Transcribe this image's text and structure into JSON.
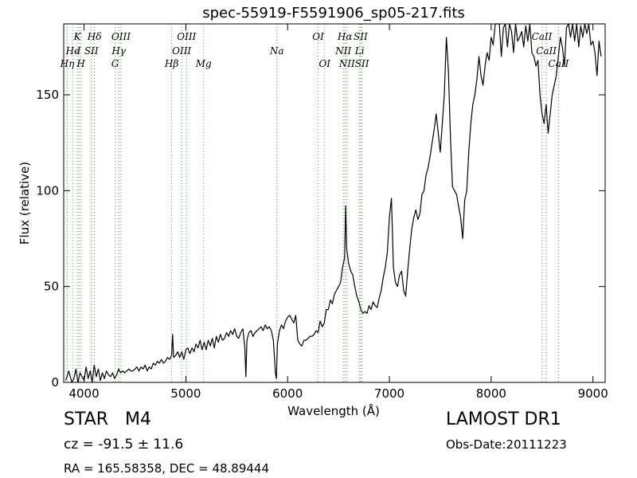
{
  "chart_data": {
    "type": "line",
    "title": "spec-55919-F5591906_sp05-217.fits",
    "xlabel": "Wavelength (Å)",
    "ylabel": "Flux (relative)",
    "xlim": [
      3800,
      9120
    ],
    "ylim": [
      0,
      187
    ],
    "xticks": [
      4000,
      5000,
      6000,
      7000,
      8000,
      9000
    ],
    "yticks": [
      0,
      50,
      100,
      150
    ],
    "grid": false,
    "line_color": "#000000",
    "marker_color": "#44aa44",
    "series": [
      {
        "x": [
          3820,
          3850,
          3880,
          3900,
          3920,
          3940,
          3960,
          3980,
          4000,
          4020,
          4040,
          4060,
          4080,
          4100,
          4120,
          4140,
          4160,
          4180,
          4200,
          4220,
          4240,
          4260,
          4280,
          4300,
          4320,
          4340,
          4360,
          4380,
          4400,
          4420,
          4440,
          4460,
          4480,
          4500,
          4520,
          4540,
          4560,
          4580,
          4600,
          4620,
          4640,
          4660,
          4680,
          4700,
          4720,
          4740,
          4760,
          4780,
          4800,
          4820,
          4840,
          4860,
          4870,
          4880,
          4900,
          4920,
          4940,
          4960,
          4980,
          5000,
          5020,
          5040,
          5060,
          5080,
          5100,
          5120,
          5140,
          5160,
          5180,
          5200,
          5220,
          5240,
          5260,
          5280,
          5300,
          5320,
          5340,
          5360,
          5380,
          5400,
          5420,
          5440,
          5460,
          5480,
          5500,
          5520,
          5540,
          5560,
          5580,
          5590,
          5600,
          5620,
          5640,
          5660,
          5680,
          5700,
          5720,
          5740,
          5760,
          5780,
          5800,
          5820,
          5840,
          5860,
          5880,
          5890,
          5900,
          5920,
          5940,
          5960,
          5980,
          6000,
          6020,
          6040,
          6060,
          6080,
          6100,
          6120,
          6140,
          6160,
          6180,
          6200,
          6220,
          6240,
          6260,
          6280,
          6300,
          6320,
          6340,
          6360,
          6380,
          6400,
          6420,
          6440,
          6460,
          6480,
          6500,
          6520,
          6540,
          6560,
          6570,
          6580,
          6600,
          6620,
          6640,
          6660,
          6680,
          6700,
          6720,
          6740,
          6760,
          6780,
          6800,
          6820,
          6840,
          6860,
          6880,
          6900,
          6920,
          6940,
          6960,
          6980,
          7000,
          7020,
          7040,
          7060,
          7080,
          7100,
          7120,
          7140,
          7160,
          7180,
          7200,
          7220,
          7240,
          7260,
          7280,
          7300,
          7320,
          7340,
          7360,
          7380,
          7400,
          7420,
          7440,
          7460,
          7480,
          7500,
          7520,
          7540,
          7560,
          7580,
          7600,
          7620,
          7640,
          7660,
          7680,
          7700,
          7720,
          7740,
          7760,
          7780,
          7800,
          7820,
          7840,
          7860,
          7880,
          7900,
          7920,
          7940,
          7960,
          7980,
          8000,
          8020,
          8040,
          8060,
          8080,
          8100,
          8120,
          8140,
          8160,
          8180,
          8200,
          8220,
          8240,
          8260,
          8280,
          8300,
          8320,
          8340,
          8360,
          8380,
          8400,
          8420,
          8440,
          8460,
          8480,
          8500,
          8520,
          8540,
          8560,
          8580,
          8600,
          8620,
          8640,
          8660,
          8680,
          8700,
          8720,
          8740,
          8760,
          8780,
          8800,
          8820,
          8840,
          8860,
          8880,
          8900,
          8920,
          8940,
          8960,
          8980,
          9000,
          9020,
          9040,
          9060,
          9080
        ],
        "y": [
          1,
          6,
          0,
          2,
          7,
          0,
          5,
          3,
          1,
          8,
          2,
          6,
          0,
          9,
          3,
          7,
          1,
          5,
          2,
          6,
          4,
          3,
          5,
          2,
          4,
          7,
          5,
          6,
          5,
          6,
          7,
          6,
          6,
          7,
          8,
          6,
          8,
          7,
          9,
          6,
          8,
          7,
          10,
          9,
          11,
          10,
          12,
          10,
          11,
          13,
          12,
          14,
          25,
          13,
          14,
          16,
          13,
          16,
          12,
          17,
          18,
          15,
          18,
          16,
          20,
          18,
          22,
          17,
          21,
          17,
          22,
          19,
          23,
          18,
          24,
          21,
          25,
          22,
          23,
          26,
          24,
          27,
          25,
          28,
          24,
          23,
          26,
          28,
          18,
          3,
          22,
          26,
          27,
          24,
          26,
          27,
          28,
          29,
          27,
          30,
          28,
          29,
          27,
          22,
          5,
          2,
          20,
          27,
          30,
          28,
          32,
          34,
          35,
          33,
          31,
          35,
          22,
          20,
          19,
          22,
          22,
          23,
          24,
          24,
          25,
          27,
          26,
          32,
          29,
          31,
          38,
          38,
          43,
          41,
          46,
          48,
          50,
          52,
          60,
          65,
          92,
          70,
          62,
          58,
          56,
          50,
          45,
          42,
          38,
          36,
          37,
          36,
          40,
          38,
          42,
          40,
          39,
          44,
          48,
          55,
          60,
          68,
          86,
          96,
          60,
          52,
          50,
          56,
          58,
          48,
          45,
          58,
          70,
          80,
          86,
          90,
          85,
          88,
          98,
          100,
          108,
          112,
          118,
          125,
          132,
          140,
          130,
          120,
          135,
          150,
          180,
          162,
          128,
          102,
          100,
          98,
          92,
          86,
          75,
          95,
          100,
          120,
          135,
          145,
          150,
          158,
          170,
          160,
          155,
          165,
          172,
          168,
          180,
          176,
          187,
          187,
          187,
          170,
          185,
          187,
          175,
          187,
          183,
          172,
          187,
          178,
          180,
          183,
          175,
          186,
          178,
          187,
          172,
          170,
          165,
          168,
          150,
          140,
          135,
          145,
          130,
          140,
          150,
          155,
          160,
          170,
          180,
          175,
          165,
          185,
          187,
          180,
          187,
          178,
          187,
          175,
          186,
          180,
          187,
          182,
          187,
          176,
          178,
          172,
          160,
          178,
          170
        ],
        "line_series_values_note": ""
      }
    ],
    "line_markers": [
      {
        "label": "Hη",
        "x": 3835,
        "row": 3
      },
      {
        "label": "He",
        "x": 3889,
        "row": 2
      },
      {
        "label": "K",
        "x": 3934,
        "row": 1
      },
      {
        "label": "I",
        "x": 3950,
        "row": 2
      },
      {
        "label": "H",
        "x": 3969,
        "row": 3
      },
      {
        "label": "SII",
        "x": 4072,
        "row": 2
      },
      {
        "label": "Hδ",
        "x": 4102,
        "row": 1
      },
      {
        "label": "G",
        "x": 4305,
        "row": 3
      },
      {
        "label": "Hγ",
        "x": 4341,
        "row": 2
      },
      {
        "label": "OIII",
        "x": 4363,
        "row": 1
      },
      {
        "label": "Hβ",
        "x": 4861,
        "row": 3
      },
      {
        "label": "OIII",
        "x": 4959,
        "row": 2
      },
      {
        "label": "OIII",
        "x": 5007,
        "row": 1
      },
      {
        "label": "Mg",
        "x": 5175,
        "row": 3
      },
      {
        "label": "Na",
        "x": 5894,
        "row": 2
      },
      {
        "label": "OI",
        "x": 6300,
        "row": 1
      },
      {
        "label": "OI",
        "x": 6364,
        "row": 3
      },
      {
        "label": "NII",
        "x": 6548,
        "row": 2
      },
      {
        "label": "Hα",
        "x": 6563,
        "row": 1
      },
      {
        "label": "NII",
        "x": 6583,
        "row": 3
      },
      {
        "label": "Li",
        "x": 6708,
        "row": 2
      },
      {
        "label": "SII",
        "x": 6717,
        "row": 1
      },
      {
        "label": "SII",
        "x": 6731,
        "row": 3
      },
      {
        "label": "CaII",
        "x": 8498,
        "row": 1
      },
      {
        "label": "CaII",
        "x": 8542,
        "row": 2
      },
      {
        "label": "CaII",
        "x": 8662,
        "row": 3
      }
    ]
  },
  "info": {
    "object": "STAR   M4",
    "redshift": "cz = -91.5 ± 11.6",
    "coords": "RA = 165.58358, DEC = 48.89444",
    "survey": "LAMOST DR1",
    "obs_date": "Obs-Date:20111223"
  }
}
